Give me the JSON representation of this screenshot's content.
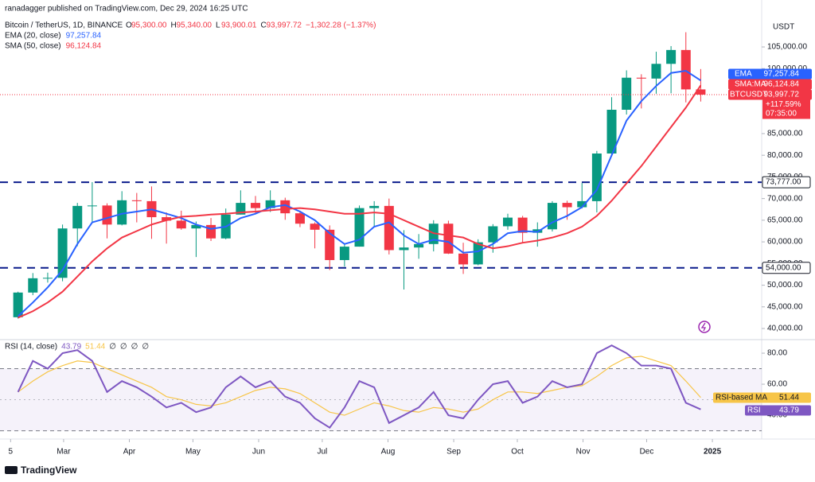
{
  "header": {
    "published": "ranadagger published on TradingView.com, Dec 29, 2024 16:25 UTC",
    "symbol": "Bitcoin / TetherUS, 1D, BINANCE",
    "ohlc": [
      {
        "label": "O",
        "value": "95,300.00"
      },
      {
        "label": "H",
        "value": "95,340.00"
      },
      {
        "label": "L",
        "value": "93,900.01"
      },
      {
        "label": "C",
        "value": "93,997.72"
      }
    ],
    "change": "−1,302.28 (−1.37%)"
  },
  "footer": "TradingView",
  "chart_data": {
    "type": "candlestick",
    "currency": "USDT",
    "x": [
      4,
      11,
      18,
      25,
      32,
      39,
      46,
      53,
      60,
      67,
      74,
      81,
      88,
      95,
      102,
      109,
      116,
      123,
      130,
      137,
      144,
      151,
      158,
      165,
      172,
      179,
      186,
      193,
      200,
      207,
      214,
      221,
      228,
      235,
      242,
      249,
      256,
      263,
      270,
      277,
      284,
      291,
      298,
      305,
      312,
      319,
      326
    ],
    "xlim": [
      -1,
      357.5
    ],
    "xticks": [
      {
        "value": 4,
        "label": "5"
      },
      {
        "value": 29,
        "label": "Mar"
      },
      {
        "value": 60,
        "label": "Apr"
      },
      {
        "value": 90,
        "label": "May"
      },
      {
        "value": 121,
        "label": "Jun"
      },
      {
        "value": 151,
        "label": "Jul"
      },
      {
        "value": 182,
        "label": "Aug"
      },
      {
        "value": 213,
        "label": "Sep"
      },
      {
        "value": 243,
        "label": "Oct"
      },
      {
        "value": 274,
        "label": "Nov"
      },
      {
        "value": 304,
        "label": "Dec"
      },
      {
        "value": 335,
        "label": "2025"
      }
    ],
    "ylim": [
      37800,
      115840
    ],
    "yticks": [
      {
        "value": 40000,
        "label": "40,000.00"
      },
      {
        "value": 45000,
        "label": "45,000.00"
      },
      {
        "value": 50000,
        "label": "50,000.00"
      },
      {
        "value": 55000,
        "label": "55,000.00"
      },
      {
        "value": 60000,
        "label": "60,000.00"
      },
      {
        "value": 65000,
        "label": "65,000.00"
      },
      {
        "value": 70000,
        "label": "70,000.00"
      },
      {
        "value": 75000,
        "label": "75,000.00"
      },
      {
        "value": 80000,
        "label": "80,000.00"
      },
      {
        "value": 85000,
        "label": "85,000.00"
      },
      {
        "value": 100000,
        "label": "100,000.00"
      },
      {
        "value": 105000,
        "label": "105,000.00"
      }
    ],
    "candles": {
      "name": "BTCUSDT",
      "up_color": "#089981",
      "down_color": "#f23645",
      "open": [
        42600,
        48300,
        51600,
        51700,
        63100,
        68300,
        68400,
        64000,
        69600,
        69400,
        65700,
        64900,
        63100,
        63900,
        60800,
        66300,
        69000,
        67800,
        69600,
        66600,
        64200,
        62800,
        55800,
        58900,
        67800,
        68300,
        58100,
        58700,
        59500,
        64200,
        57300,
        54800,
        59900,
        63600,
        65600,
        62100,
        62900,
        69000,
        68000,
        69400,
        80400,
        90500,
        97900,
        97700,
        101100,
        104300,
        95200
      ],
      "high": [
        48500,
        52800,
        52900,
        64000,
        69000,
        73800,
        68900,
        71700,
        71300,
        72800,
        66800,
        67200,
        64700,
        65500,
        67700,
        71900,
        70600,
        71900,
        70200,
        67200,
        64500,
        63800,
        59400,
        68400,
        69400,
        70000,
        62700,
        61800,
        65000,
        64900,
        59800,
        60600,
        64100,
        66500,
        66000,
        64500,
        69400,
        69500,
        73600,
        81000,
        93400,
        99600,
        98700,
        103900,
        105200,
        108400,
        99900
      ],
      "low": [
        42300,
        47700,
        50600,
        50900,
        59000,
        64500,
        60800,
        63800,
        64500,
        60700,
        59600,
        62800,
        56500,
        60200,
        60600,
        66300,
        66600,
        66900,
        65100,
        63400,
        58500,
        53500,
        54300,
        58900,
        63500,
        57100,
        49000,
        56100,
        57800,
        57200,
        52600,
        54600,
        57500,
        62800,
        59800,
        58900,
        62400,
        65100,
        67700,
        66800,
        80200,
        89400,
        90800,
        94200,
        94300,
        92200,
        92400
      ],
      "close": [
        48300,
        51600,
        51700,
        63100,
        68300,
        68400,
        64000,
        69600,
        69400,
        65700,
        64900,
        63100,
        63900,
        60800,
        66300,
        69000,
        67800,
        69600,
        66600,
        64200,
        62800,
        55800,
        58900,
        67800,
        68300,
        58100,
        58700,
        59500,
        64200,
        57300,
        54800,
        59900,
        63600,
        65600,
        62100,
        62900,
        69000,
        68000,
        69400,
        80400,
        90500,
        97900,
        97700,
        101100,
        104300,
        95200,
        93997.72
      ],
      "last_label": "93,997.72",
      "change_label": "+117.59%",
      "countdown": "07:35:00"
    },
    "series": [
      {
        "name": "EMA (20, close)",
        "tag": "EMA",
        "color": "#2962ff",
        "values": [
          42800,
          46000,
          49500,
          53500,
          59500,
          64500,
          65500,
          66500,
          67000,
          67500,
          66500,
          65500,
          64000,
          63000,
          63500,
          65500,
          66500,
          68000,
          68500,
          67000,
          65000,
          62000,
          59500,
          60500,
          63500,
          64500,
          61500,
          59500,
          60500,
          60000,
          57500,
          57800,
          59500,
          62000,
          62500,
          62300,
          64500,
          66000,
          68000,
          72000,
          80000,
          88000,
          92500,
          96000,
          99000,
          99500,
          97257.84
        ],
        "value_labels": "97,257.84"
      },
      {
        "name": "SMA (50, close)",
        "tag": "SMA:MA",
        "color": "#f23645",
        "values": [
          42500,
          44000,
          46000,
          48500,
          52000,
          55500,
          58500,
          61000,
          62500,
          64000,
          65000,
          65800,
          66000,
          66300,
          66500,
          66800,
          67000,
          67300,
          67600,
          67800,
          67500,
          67000,
          66500,
          66500,
          66800,
          66500,
          65000,
          63500,
          62000,
          61500,
          61000,
          59500,
          58500,
          59000,
          59800,
          60300,
          61000,
          62000,
          63500,
          66000,
          69500,
          73500,
          77500,
          82000,
          86500,
          91000,
          96124.84
        ],
        "value_labels": "96,124.84"
      }
    ],
    "levels": [
      {
        "value": 73777,
        "label": "73,777.00"
      },
      {
        "value": 54000,
        "label": "54,000.00"
      }
    ],
    "rsi": {
      "title": "RSI (14, close)",
      "ylim": [
        26.7,
        87.2
      ],
      "yticks": [
        {
          "value": 80,
          "label": "80.00"
        },
        {
          "value": 60,
          "label": "60.00"
        },
        {
          "value": 40,
          "label": "40.00"
        }
      ],
      "band": [
        30,
        70
      ],
      "midline": 50,
      "series": [
        {
          "name": "RSI",
          "color": "#7e57c2",
          "values": [
            55,
            75,
            70,
            80,
            82,
            75,
            55,
            62,
            58,
            52,
            45,
            48,
            42,
            45,
            58,
            65,
            58,
            62,
            52,
            48,
            38,
            32,
            45,
            62,
            58,
            35,
            40,
            45,
            55,
            40,
            38,
            50,
            60,
            62,
            48,
            52,
            62,
            58,
            60,
            80,
            85,
            80,
            72,
            72,
            70,
            48,
            43.79
          ],
          "value_labels": "43.79"
        },
        {
          "name": "RSI-based MA",
          "color": "#f7c548",
          "values": [
            55,
            62,
            68,
            72,
            75,
            74,
            70,
            66,
            62,
            58,
            52,
            50,
            47,
            46,
            48,
            52,
            56,
            58,
            57,
            54,
            48,
            42,
            40,
            44,
            48,
            46,
            43,
            42,
            45,
            44,
            42,
            44,
            50,
            55,
            55,
            54,
            56,
            58,
            59,
            65,
            72,
            77,
            78,
            75,
            72,
            62,
            51.44
          ],
          "value_labels": "51.44"
        }
      ],
      "empty_values": [
        "∅",
        "∅",
        "∅",
        "∅"
      ]
    }
  }
}
